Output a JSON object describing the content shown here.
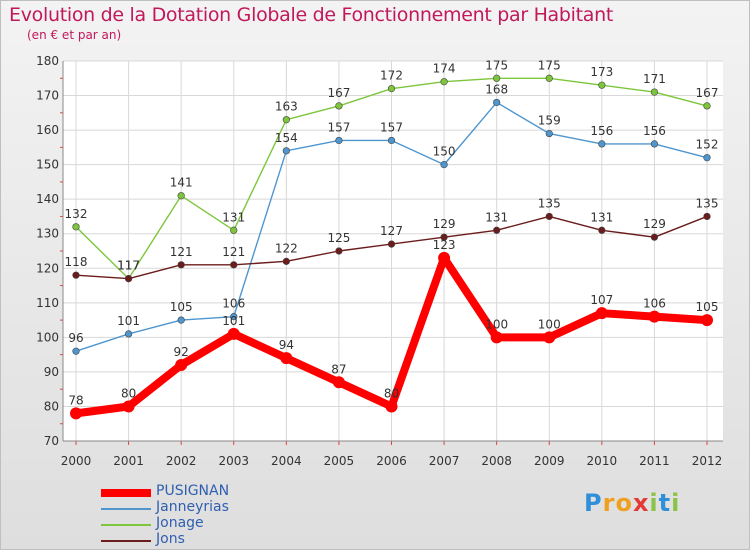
{
  "chart_data": {
    "type": "line",
    "title": "Evolution de la Dotation Globale de Fonctionnement par Habitant",
    "subtitle": "(en € et par an)",
    "xlabel": "",
    "ylabel": "",
    "ylim": [
      70,
      180
    ],
    "yticks": [
      70,
      80,
      90,
      100,
      110,
      120,
      130,
      140,
      150,
      160,
      170,
      180
    ],
    "categories": [
      "2000",
      "2001",
      "2002",
      "2003",
      "2004",
      "2005",
      "2006",
      "2007",
      "2008",
      "2009",
      "2010",
      "2011",
      "2012"
    ],
    "grid": true,
    "legend_position": "bottom-left",
    "series": [
      {
        "name": "Jonage",
        "color": "#7dc63b",
        "values": [
          132,
          117,
          141,
          131,
          163,
          167,
          172,
          174,
          175,
          175,
          173,
          171,
          167
        ]
      },
      {
        "name": "Janneyrias",
        "color": "#4f96cf",
        "values": [
          96,
          101,
          105,
          106,
          154,
          157,
          157,
          150,
          168,
          159,
          156,
          156,
          152
        ]
      },
      {
        "name": "Jons",
        "color": "#6b1c1c",
        "values": [
          118,
          117,
          121,
          121,
          122,
          125,
          127,
          129,
          131,
          135,
          131,
          129,
          135
        ]
      },
      {
        "name": "PUSIGNAN",
        "color": "#ff0000",
        "values": [
          78,
          80,
          92,
          101,
          94,
          87,
          80,
          123,
          100,
          100,
          107,
          106,
          105
        ]
      }
    ],
    "legend_order": [
      "PUSIGNAN",
      "Janneyrias",
      "Jonage",
      "Jons"
    ]
  },
  "logo": {
    "letters": [
      "P",
      "r",
      "o",
      "x",
      "i",
      "t",
      "i"
    ]
  }
}
